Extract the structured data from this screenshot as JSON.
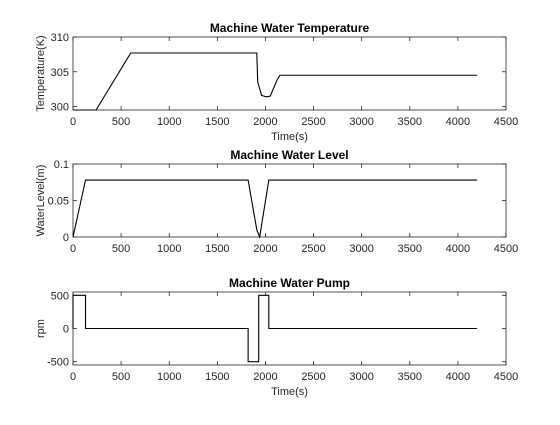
{
  "chart_data": [
    {
      "type": "line",
      "title": "Machine Water Temperature",
      "xlabel": "Time(s)",
      "ylabel": "Temperature(K)",
      "xlim": [
        0,
        4500
      ],
      "ylim": [
        299.5,
        310
      ],
      "xticks": [
        0,
        500,
        1000,
        1500,
        2000,
        2500,
        3000,
        3500,
        4000,
        4500
      ],
      "yticks": [
        300,
        305,
        310
      ],
      "series": [
        {
          "x": [
            0,
            240,
            600,
            1910,
            1920,
            1960,
            2010,
            2050,
            2120,
            2150,
            4200
          ],
          "y": [
            299.5,
            299.5,
            307.7,
            307.7,
            303.5,
            301.6,
            301.4,
            301.5,
            303.8,
            304.5,
            304.5
          ]
        }
      ]
    },
    {
      "type": "line",
      "title": "Machine Water Level",
      "xlabel": "",
      "ylabel": "WaterLevel(m)",
      "xlim": [
        0,
        4500
      ],
      "ylim": [
        0,
        0.1
      ],
      "xticks": [
        0,
        500,
        1000,
        1500,
        2000,
        2500,
        3000,
        3500,
        4000,
        4500
      ],
      "yticks": [
        0,
        0.05,
        0.1
      ],
      "series": [
        {
          "x": [
            0,
            130,
            1820,
            1910,
            1940,
            2035,
            4200
          ],
          "y": [
            0,
            0.078,
            0.078,
            0.01,
            0,
            0.078,
            0.078
          ]
        }
      ]
    },
    {
      "type": "line",
      "title": "Machine Water Pump",
      "xlabel": "Time(s)",
      "ylabel": "rpm",
      "xlim": [
        0,
        4500
      ],
      "ylim": [
        -550,
        550
      ],
      "xticks": [
        0,
        500,
        1000,
        1500,
        2000,
        2500,
        3000,
        3500,
        4000,
        4500
      ],
      "yticks": [
        -500,
        0,
        500
      ],
      "series": [
        {
          "x": [
            0,
            0,
            130,
            130,
            1820,
            1820,
            1930,
            1930,
            2035,
            2035,
            4200
          ],
          "y": [
            0,
            500,
            500,
            0,
            0,
            -500,
            -500,
            500,
            500,
            0,
            0
          ]
        }
      ]
    }
  ]
}
